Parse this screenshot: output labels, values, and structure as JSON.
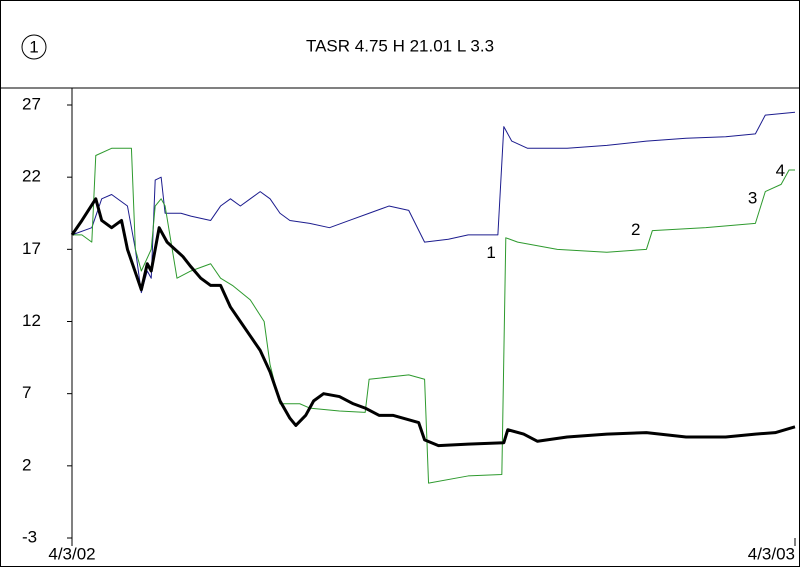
{
  "chart_data": {
    "type": "line",
    "title": "TASR 4.75  H 21.01  L 3.3",
    "badge": "1",
    "xlim": [
      0,
      365
    ],
    "xticks": [
      {
        "value": 0,
        "label": "4/3/02"
      },
      {
        "value": 365,
        "label": "4/3/03"
      }
    ],
    "ylim": [
      -3,
      27
    ],
    "yticks": [
      -3,
      2,
      7,
      12,
      17,
      22,
      27
    ],
    "series": [
      {
        "color": "#1c1c8e",
        "width": 1,
        "x": [
          0,
          10,
          15,
          20,
          28,
          32,
          35,
          38,
          40,
          42,
          45,
          47,
          55,
          60,
          70,
          75,
          80,
          85,
          90,
          95,
          100,
          105,
          110,
          120,
          130,
          140,
          150,
          160,
          170,
          178,
          190,
          200,
          215,
          218,
          222,
          230,
          250,
          270,
          290,
          310,
          330,
          345,
          350,
          365
        ],
        "values": [
          18,
          18.5,
          20.5,
          20.8,
          20,
          17,
          14,
          15.5,
          15,
          21.8,
          22,
          19.5,
          19.5,
          19.3,
          19,
          20,
          20.5,
          20,
          20.5,
          21,
          20.5,
          19.5,
          19,
          18.8,
          18.5,
          19,
          19.5,
          20,
          19.7,
          17.5,
          17.7,
          18,
          18,
          25.5,
          24.5,
          24,
          24,
          24.2,
          24.5,
          24.7,
          24.8,
          25,
          26.3,
          26.5
        ]
      },
      {
        "color": "#2e9a2e",
        "width": 1,
        "x": [
          0,
          5,
          10,
          12,
          20,
          30,
          32,
          35,
          40,
          42,
          45,
          47,
          53,
          60,
          70,
          75,
          81,
          90,
          97,
          100,
          105,
          115,
          120,
          135,
          148,
          150,
          170,
          178,
          180,
          200,
          217,
          219,
          225,
          245,
          270,
          290,
          293,
          320,
          345,
          350,
          358,
          362,
          365
        ],
        "values": [
          18,
          18,
          17.5,
          23.5,
          24,
          24,
          17,
          15.5,
          17,
          20,
          20.5,
          20,
          15,
          15.5,
          16,
          15,
          14.5,
          13.5,
          12,
          9,
          6.3,
          6.3,
          6,
          5.8,
          5.7,
          8,
          8.3,
          8,
          0.8,
          1.3,
          1.4,
          17.8,
          17.5,
          17,
          16.8,
          17,
          18.3,
          18.5,
          18.8,
          21,
          21.5,
          22.5,
          22.5
        ]
      },
      {
        "color": "#000000",
        "width": 3,
        "x": [
          0,
          5,
          12,
          15,
          20,
          25,
          28,
          33,
          35,
          38,
          40,
          44,
          48,
          52,
          56,
          60,
          65,
          70,
          75,
          80,
          85,
          90,
          95,
          100,
          105,
          110,
          113,
          118,
          122,
          127,
          135,
          142,
          148,
          155,
          162,
          175,
          178,
          185,
          200,
          218,
          220,
          228,
          235,
          250,
          270,
          290,
          310,
          330,
          345,
          355,
          365
        ],
        "values": [
          18,
          19,
          20.5,
          19,
          18.5,
          19,
          17,
          15,
          14.2,
          16,
          15.5,
          18.5,
          17.5,
          17,
          16.5,
          15.8,
          15,
          14.5,
          14.5,
          13,
          12,
          11,
          10,
          8.5,
          6.5,
          5.3,
          4.8,
          5.5,
          6.5,
          7,
          6.8,
          6.3,
          6,
          5.5,
          5.5,
          5,
          3.8,
          3.4,
          3.5,
          3.6,
          4.5,
          4.2,
          3.7,
          4,
          4.2,
          4.3,
          4,
          4,
          4.2,
          4.3,
          4.7
        ]
      }
    ],
    "annotations": [
      {
        "text": "1",
        "x": 214,
        "y": 16.7
      },
      {
        "text": "2",
        "x": 287,
        "y": 18.3
      },
      {
        "text": "3",
        "x": 346,
        "y": 20.5
      },
      {
        "text": "4",
        "x": 360,
        "y": 22.4
      }
    ]
  }
}
